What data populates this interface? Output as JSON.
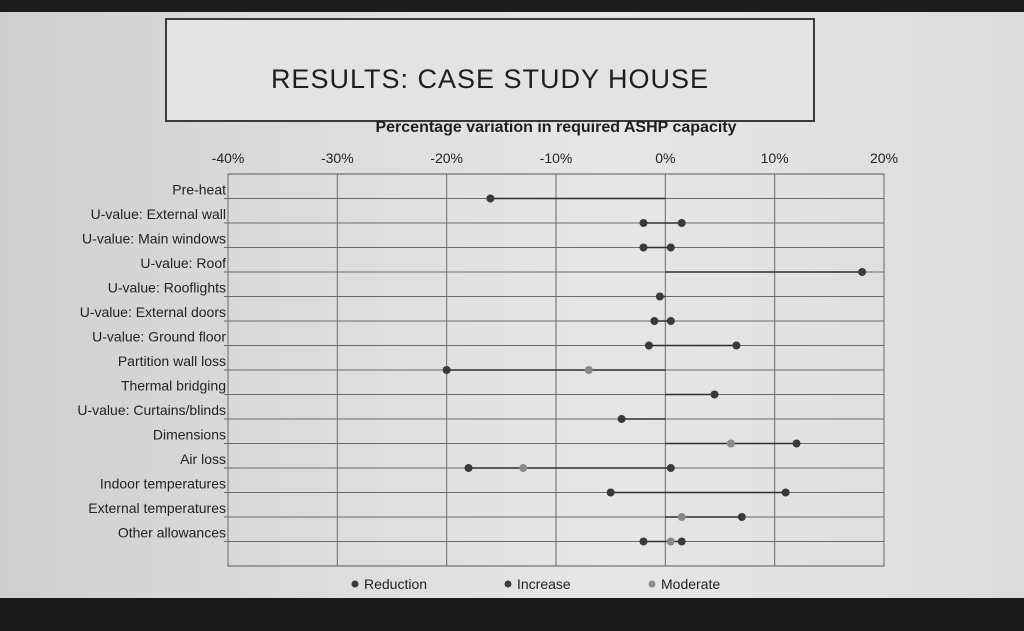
{
  "slide": {
    "title": "RESULTS: CASE STUDY HOUSE"
  },
  "chart_data": {
    "type": "dumbbell",
    "title": "Percentage variation in required ASHP capacity",
    "xlim": [
      -40,
      20
    ],
    "xticks": [
      "-40%",
      "-30%",
      "-20%",
      "-10%",
      "0%",
      "10%",
      "20%"
    ],
    "categories": [
      "Pre-heat",
      "U-value: External wall",
      "U-value: Main windows",
      "U-value: Roof",
      "U-value: Rooflights",
      "U-value: External doors",
      "U-value: Ground floor",
      "Partition wall loss",
      "Thermal bridging",
      "U-value: Curtains/blinds",
      "Dimensions",
      "Air loss",
      "Indoor temperatures",
      "External temperatures",
      "Other allowances"
    ],
    "series": [
      {
        "name": "Reduction",
        "color": "#3a3a3a",
        "values": [
          -16,
          -2,
          -2,
          null,
          -0.5,
          -1,
          -1.5,
          -20,
          null,
          -4,
          null,
          -18,
          -5,
          null,
          -2
        ]
      },
      {
        "name": "Increase",
        "color": "#3a3a3a",
        "values": [
          null,
          1.5,
          0.5,
          18,
          null,
          0.5,
          6.5,
          null,
          4.5,
          null,
          12,
          0.5,
          11,
          7,
          1.5
        ]
      },
      {
        "name": "Moderate",
        "color": "#8a8a8a",
        "values": [
          null,
          null,
          null,
          null,
          null,
          null,
          null,
          -7,
          null,
          null,
          6,
          -13,
          null,
          1.5,
          0.5
        ]
      }
    ],
    "legend": "bottom",
    "grid": true
  }
}
